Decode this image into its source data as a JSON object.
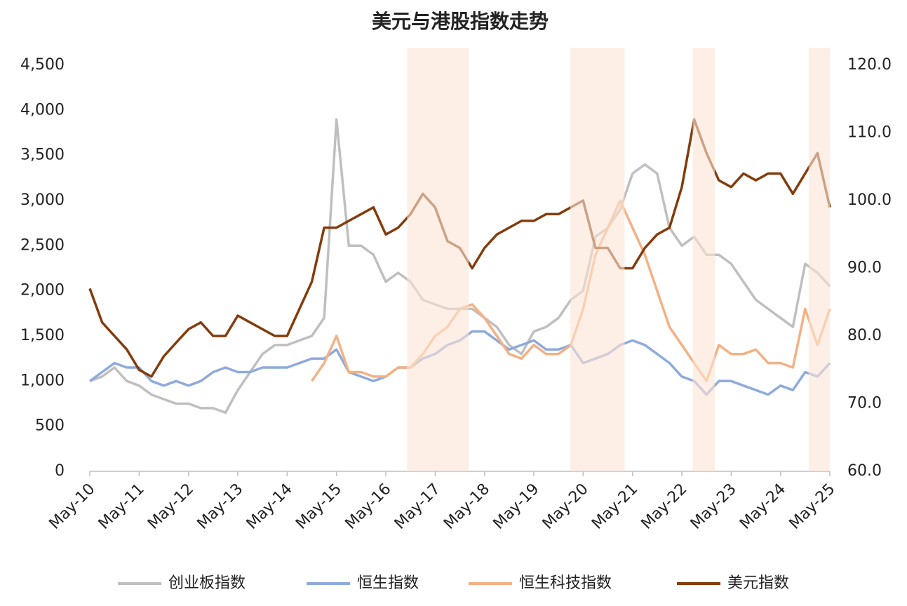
{
  "chart_data": {
    "type": "line",
    "title": "美元与港股指数走势",
    "x": [
      2010.33,
      2010.58,
      2010.83,
      2011.08,
      2011.33,
      2011.58,
      2011.83,
      2012.08,
      2012.33,
      2012.58,
      2012.83,
      2013.08,
      2013.33,
      2013.58,
      2013.83,
      2014.08,
      2014.33,
      2014.58,
      2014.83,
      2015.08,
      2015.33,
      2015.58,
      2015.83,
      2016.08,
      2016.33,
      2016.58,
      2016.83,
      2017.08,
      2017.33,
      2017.58,
      2017.83,
      2018.08,
      2018.33,
      2018.58,
      2018.83,
      2019.08,
      2019.33,
      2019.58,
      2019.83,
      2020.08,
      2020.33,
      2020.58,
      2020.83,
      2021.08,
      2021.33,
      2021.58,
      2021.83,
      2022.08,
      2022.33,
      2022.58,
      2022.83,
      2023.08,
      2023.33,
      2023.58,
      2023.83,
      2024.08,
      2024.33,
      2024.58,
      2024.83,
      2025.08,
      2025.33
    ],
    "series": [
      {
        "name": "创业板指数",
        "color": "#bfbfbf",
        "values": [
          1000,
          1050,
          1150,
          1000,
          950,
          850,
          800,
          750,
          750,
          700,
          700,
          650,
          900,
          1100,
          1300,
          1400,
          1400,
          1450,
          1500,
          1700,
          3900,
          2500,
          2500,
          2400,
          2100,
          2200,
          2100,
          1900,
          1850,
          1800,
          1800,
          1800,
          1700,
          1600,
          1400,
          1300,
          1550,
          1600,
          1700,
          1900,
          2000,
          2600,
          2700,
          2900,
          3300,
          3400,
          3300,
          2700,
          2500,
          2600,
          2400,
          2400,
          2300,
          2100,
          1900,
          1800,
          1700,
          1600,
          2300,
          2200,
          2050
        ]
      },
      {
        "name": "恒生指数",
        "color": "#8faadc",
        "values": [
          1000,
          1100,
          1200,
          1150,
          1150,
          1000,
          950,
          1000,
          950,
          1000,
          1100,
          1150,
          1100,
          1100,
          1150,
          1150,
          1150,
          1200,
          1250,
          1250,
          1350,
          1100,
          1050,
          1000,
          1050,
          1150,
          1150,
          1250,
          1300,
          1400,
          1450,
          1550,
          1550,
          1450,
          1350,
          1400,
          1450,
          1350,
          1350,
          1400,
          1200,
          1250,
          1300,
          1400,
          1450,
          1400,
          1300,
          1200,
          1050,
          1000,
          850,
          1000,
          1000,
          950,
          900,
          850,
          950,
          900,
          1100,
          1050,
          1200
        ]
      },
      {
        "name": "恒生科技指数",
        "color": "#f4b183",
        "values": [
          null,
          null,
          null,
          null,
          null,
          null,
          null,
          null,
          null,
          null,
          null,
          null,
          null,
          null,
          null,
          null,
          null,
          null,
          1000,
          1200,
          1500,
          1100,
          1100,
          1050,
          1050,
          1150,
          1150,
          1300,
          1500,
          1600,
          1800,
          1850,
          1700,
          1500,
          1300,
          1250,
          1400,
          1300,
          1300,
          1400,
          1800,
          2400,
          2700,
          3000,
          2700,
          2400,
          2000,
          1600,
          1400,
          1200,
          1000,
          1400,
          1300,
          1300,
          1350,
          1200,
          1200,
          1150,
          1800,
          1400,
          1800
        ]
      },
      {
        "name": "美元指数",
        "color": "#843c0c",
        "axis": "y2",
        "values": [
          87,
          82,
          80,
          78,
          75,
          74,
          77,
          79,
          81,
          82,
          80,
          80,
          83,
          82,
          81,
          80,
          80,
          84,
          88,
          96,
          96,
          97,
          98,
          99,
          95,
          96,
          98,
          101,
          99,
          94,
          93,
          90,
          93,
          95,
          96,
          97,
          97,
          98,
          98,
          99,
          100,
          93,
          93,
          90,
          90,
          93,
          95,
          96,
          102,
          112,
          107,
          103,
          102,
          104,
          103,
          104,
          104,
          101,
          104,
          107,
          99
        ]
      }
    ],
    "xlim": [
      2010.33,
      2025.33
    ],
    "xticks": [
      {
        "value": 2010.33,
        "label": "May-10"
      },
      {
        "value": 2011.33,
        "label": "May-11"
      },
      {
        "value": 2012.33,
        "label": "May-12"
      },
      {
        "value": 2013.33,
        "label": "May-13"
      },
      {
        "value": 2014.33,
        "label": "May-14"
      },
      {
        "value": 2015.33,
        "label": "May-15"
      },
      {
        "value": 2016.33,
        "label": "May-16"
      },
      {
        "value": 2017.33,
        "label": "May-17"
      },
      {
        "value": 2018.33,
        "label": "May-18"
      },
      {
        "value": 2019.33,
        "label": "May-19"
      },
      {
        "value": 2020.33,
        "label": "May-20"
      },
      {
        "value": 2021.33,
        "label": "May-21"
      },
      {
        "value": 2022.33,
        "label": "May-22"
      },
      {
        "value": 2023.33,
        "label": "May-23"
      },
      {
        "value": 2024.33,
        "label": "May-24"
      },
      {
        "value": 2025.33,
        "label": "May-25"
      }
    ],
    "ylim": [
      0,
      4500
    ],
    "yticks": [
      0,
      500,
      {
        "value": 1000,
        "label": "1,000"
      },
      {
        "value": 1500,
        "label": "1,500"
      },
      {
        "value": 2000,
        "label": "2,000"
      },
      {
        "value": 2500,
        "label": "2,500"
      },
      {
        "value": 3000,
        "label": "3,000"
      },
      {
        "value": 3500,
        "label": "3,500"
      },
      {
        "value": 4000,
        "label": "4,000"
      },
      {
        "value": 4500,
        "label": "4,500"
      }
    ],
    "y2lim": [
      60,
      120
    ],
    "y2ticks": [
      {
        "value": 60,
        "label": "60.0"
      },
      {
        "value": 70,
        "label": "70.0"
      },
      {
        "value": 80,
        "label": "80.0"
      },
      {
        "value": 90,
        "label": "90.0"
      },
      {
        "value": 100,
        "label": "100.0"
      },
      {
        "value": 110,
        "label": "110.0"
      },
      {
        "value": 120,
        "label": "120.0"
      }
    ],
    "shaded": [
      [
        2016.76,
        2018.01
      ],
      [
        2020.07,
        2021.17
      ],
      [
        2022.55,
        2023.0
      ],
      [
        2024.9,
        2025.33
      ]
    ],
    "shade_color": "#fce4d6",
    "legend": "bottom"
  }
}
